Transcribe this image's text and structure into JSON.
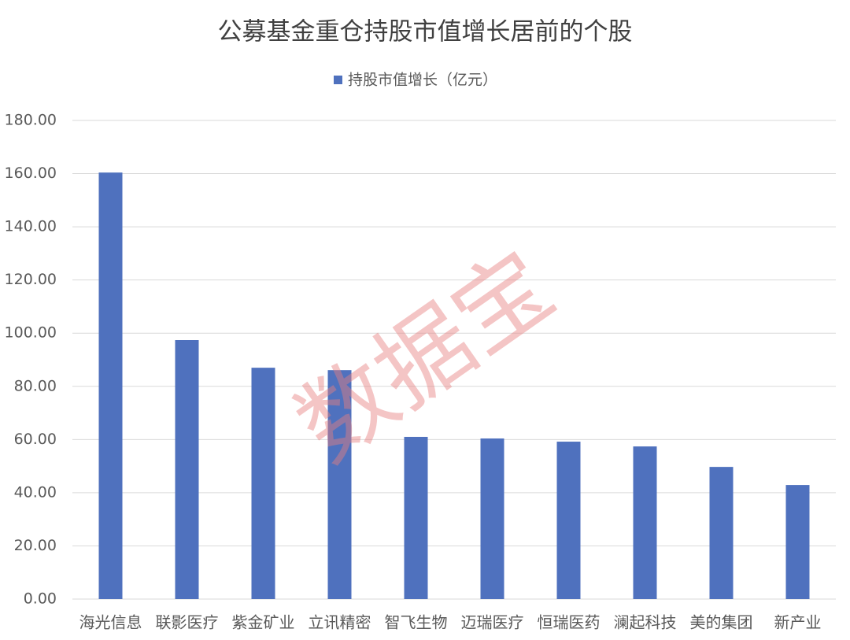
{
  "chart_data": {
    "type": "bar",
    "title": "公募基金重仓持股市值增长居前的个股",
    "watermark": "数据宝",
    "categories": [
      "海光信息",
      "联影医疗",
      "紫金矿业",
      "立讯精密",
      "智飞生物",
      "迈瑞医疗",
      "恒瑞医药",
      "澜起科技",
      "美的集团",
      "新产业"
    ],
    "series": [
      {
        "name": "持股市值增长（亿元）",
        "color": "#4f71be",
        "values": [
          160.4,
          97.4,
          87.0,
          86.1,
          61.0,
          60.4,
          59.2,
          57.4,
          49.7,
          42.9
        ]
      }
    ],
    "ylim": [
      0,
      180
    ],
    "yticks": [
      {
        "value": 0,
        "label": "0.00"
      },
      {
        "value": 20,
        "label": "20.00"
      },
      {
        "value": 40,
        "label": "40.00"
      },
      {
        "value": 60,
        "label": "60.00"
      },
      {
        "value": 80,
        "label": "80.00"
      },
      {
        "value": 100,
        "label": "100.00"
      },
      {
        "value": 120,
        "label": "120.00"
      },
      {
        "value": 140,
        "label": "140.00"
      },
      {
        "value": 160,
        "label": "160.00"
      },
      {
        "value": 180,
        "label": "180.00"
      }
    ],
    "grid": true,
    "legend": "top"
  }
}
